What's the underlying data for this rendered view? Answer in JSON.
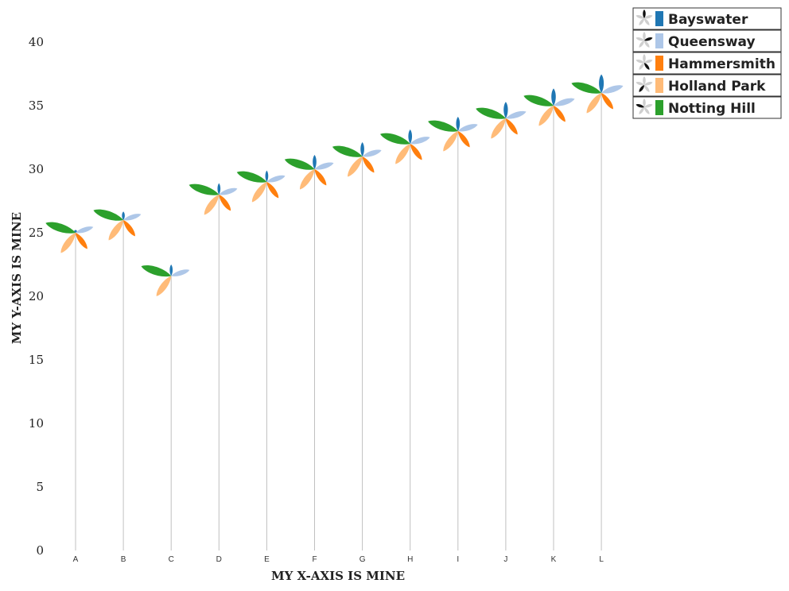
{
  "chart_data": {
    "type": "scatter",
    "xlabel": "MY X-AXIS IS MINE",
    "ylabel": "MY Y-AXIS IS MINE",
    "categories": [
      "A",
      "B",
      "C",
      "D",
      "E",
      "F",
      "G",
      "H",
      "I",
      "J",
      "K",
      "L"
    ],
    "values": [
      25,
      26,
      21.6,
      28,
      29,
      30,
      31,
      32,
      33,
      34,
      35,
      36
    ],
    "ylim": [
      0,
      40
    ],
    "yticks": [
      0,
      5,
      10,
      15,
      20,
      25,
      30,
      35,
      40
    ],
    "grid": false,
    "legend_position": "top-right",
    "series": [
      {
        "name": "Bayswater",
        "color": "#1f77b4",
        "petals": [
          0.2,
          0.6,
          0.8,
          0.8,
          0.8,
          1.0,
          1.0,
          1.0,
          1.0,
          1.15,
          1.2,
          1.3
        ]
      },
      {
        "name": "Queensway",
        "color": "#aec7e8",
        "petals": [
          1.3,
          1.3,
          1.35,
          1.35,
          1.35,
          1.4,
          1.4,
          1.45,
          1.45,
          1.5,
          1.55,
          1.6
        ]
      },
      {
        "name": "Hammersmith",
        "color": "#ff7f0e",
        "petals": [
          1.4,
          1.4,
          0,
          1.4,
          1.4,
          1.4,
          1.4,
          1.4,
          1.4,
          1.4,
          1.4,
          1.4
        ]
      },
      {
        "name": "Holland Park",
        "color": "#ffbb78",
        "petals": [
          1.75,
          1.75,
          1.75,
          1.75,
          1.75,
          1.75,
          1.75,
          1.75,
          1.75,
          1.75,
          1.75,
          1.75
        ]
      },
      {
        "name": "Notting Hill",
        "color": "#2ca02c",
        "petals": [
          2.2,
          2.2,
          2.2,
          2.2,
          2.2,
          2.2,
          2.2,
          2.2,
          2.2,
          2.2,
          2.2,
          2.2
        ]
      }
    ]
  }
}
